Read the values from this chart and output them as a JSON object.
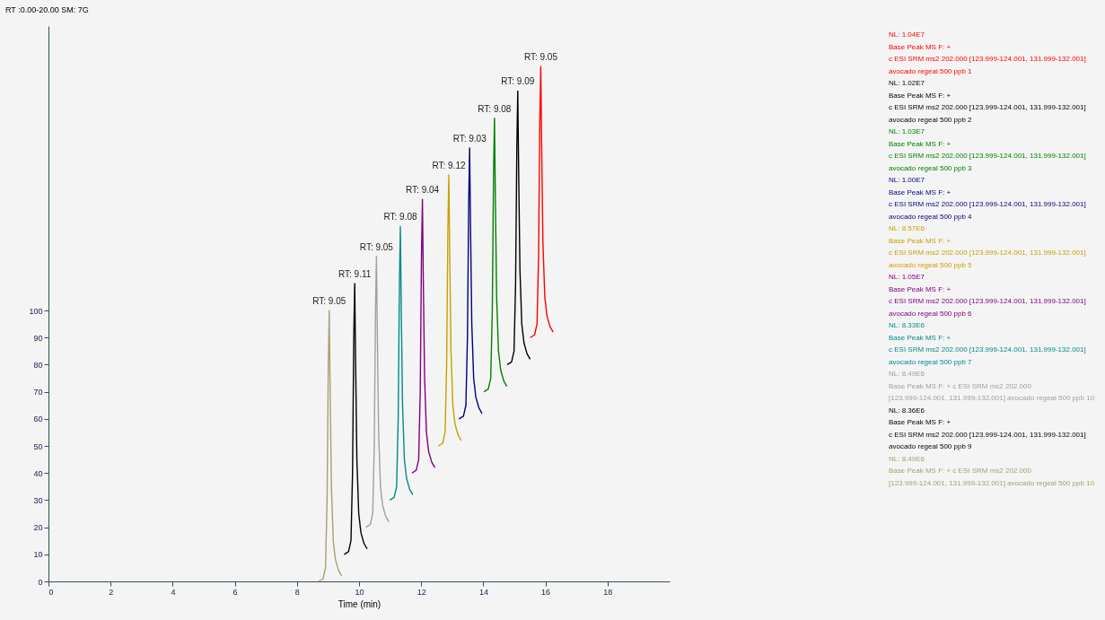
{
  "chart_data": {
    "type": "line",
    "xlabel": "Time (min)",
    "xlim": [
      0,
      20
    ],
    "xticks": [
      0,
      2,
      4,
      6,
      8,
      10,
      12,
      14,
      16,
      18
    ],
    "ylim": [
      0,
      205
    ],
    "yticks": [
      0,
      10,
      20,
      30,
      40,
      50,
      60,
      70,
      80,
      90,
      100
    ],
    "grid": false,
    "legend": "right",
    "marker": "none",
    "line_style": "solid",
    "annotations": [
      "RT :0.00-20.00 SM: 7G",
      {
        "text": "RT: 9.05",
        "x": 9.04,
        "y": 100
      },
      {
        "text": "RT: 9.11",
        "x": 9.86,
        "y": 110
      },
      {
        "text": "RT: 9.05",
        "x": 10.56,
        "y": 120
      },
      {
        "text": "RT: 9.08",
        "x": 11.33,
        "y": 131
      },
      {
        "text": "RT: 9.04",
        "x": 12.04,
        "y": 141
      },
      {
        "text": "RT: 9.12",
        "x": 12.89,
        "y": 150
      },
      {
        "text": "RT: 9.03",
        "x": 13.56,
        "y": 160
      },
      {
        "text": "RT: 9.08",
        "x": 14.36,
        "y": 171
      },
      {
        "text": "RT: 9.09",
        "x": 15.11,
        "y": 181
      },
      {
        "text": "RT: 9.05",
        "x": 15.85,
        "y": 190
      }
    ],
    "series": [
      {
        "name": "NL: 8.49E6\nBase Peak MS F: + c ESI SRM ms2 202.000\n[123.999-124.001, 131.999-132.001] avocado regeal 500 ppb 10",
        "color": "#a8a070",
        "x": [
          8.7,
          8.84,
          8.92,
          8.97,
          9.01,
          9.04,
          9.07,
          9.11,
          9.17,
          9.24,
          9.34,
          9.44
        ],
        "values": [
          0,
          1,
          5,
          30,
          80,
          100,
          70,
          35,
          15,
          8,
          4,
          2
        ]
      },
      {
        "name": "NL: 8.36E6\nBase Peak MS F: +\nc ESI SRM ms2 202.000 [123.999-124.001, 131.999-132.001] avocado regeal 500 ppb 9",
        "color": "#000000",
        "x": [
          9.52,
          9.66,
          9.74,
          9.79,
          9.83,
          9.86,
          9.89,
          9.93,
          9.99,
          10.06,
          10.16,
          10.26
        ],
        "values": [
          10,
          11,
          15,
          40,
          90,
          110,
          80,
          45,
          25,
          18,
          14,
          12
        ]
      },
      {
        "name": "NL: 8.49E6\nBase Peak MS F: + c ESI SRM ms2 202.000\n[123.999-124.001, 131.999-132.001] avocado regeal 500 ppb 10",
        "color": "#a0a0a0",
        "x": [
          10.22,
          10.36,
          10.44,
          10.49,
          10.53,
          10.56,
          10.59,
          10.63,
          10.69,
          10.76,
          10.86,
          10.96
        ],
        "values": [
          20,
          21,
          25,
          50,
          100,
          120,
          90,
          55,
          35,
          28,
          24,
          22
        ]
      },
      {
        "name": "NL: 8.33E6\nBase Peak MS F: +\nc ESI SRM ms2 202.000 [123.999-124.001, 131.999-132.001] avocado regeal 500 ppb 7",
        "color": "#008b8b",
        "x": [
          10.99,
          11.13,
          11.21,
          11.26,
          11.3,
          11.33,
          11.36,
          11.4,
          11.46,
          11.53,
          11.63,
          11.73
        ],
        "values": [
          30,
          31,
          35,
          60,
          110,
          131,
          100,
          65,
          45,
          38,
          34,
          32
        ]
      },
      {
        "name": "NL: 1.05E7\nBase Peak MS F: +\nc ESI SRM ms2 202.000 [123.999-124.001, 131.999-132.001] avocado regeal 500 ppb 6",
        "color": "#800080",
        "x": [
          11.7,
          11.84,
          11.92,
          11.97,
          12.01,
          12.04,
          12.07,
          12.11,
          12.17,
          12.24,
          12.34,
          12.44
        ],
        "values": [
          40,
          41,
          45,
          70,
          120,
          141,
          110,
          75,
          55,
          48,
          44,
          42
        ]
      },
      {
        "name": "NL: 8.57E6\nBase Peak MS F: +\nc ESI SRM ms2 202.000 [123.999-124.001, 131.999-132.001] avocado regeal 500 ppb 5",
        "color": "#c8a000",
        "x": [
          12.55,
          12.69,
          12.77,
          12.82,
          12.86,
          12.89,
          12.92,
          12.96,
          13.02,
          13.09,
          13.19,
          13.29
        ],
        "values": [
          50,
          51,
          55,
          80,
          130,
          150,
          120,
          85,
          65,
          58,
          54,
          52
        ]
      },
      {
        "name": "NL: 1.00E7\nBase Peak MS F: +\nc ESI SRM ms2 202.000 [123.999-124.001, 131.999-132.001] avocado regeal 500 ppb 4",
        "color": "#000080",
        "x": [
          13.22,
          13.36,
          13.44,
          13.49,
          13.53,
          13.56,
          13.59,
          13.63,
          13.69,
          13.76,
          13.86,
          13.96
        ],
        "values": [
          60,
          61,
          65,
          90,
          140,
          160,
          130,
          95,
          75,
          68,
          64,
          62
        ]
      },
      {
        "name": "NL: 1.03E7\nBase Peak MS F: +\nc ESI SRM ms2 202.000 [123.999-124.001, 131.999-132.001] avocado regeal 500 ppb 3",
        "color": "#008000",
        "x": [
          14.02,
          14.16,
          14.24,
          14.29,
          14.33,
          14.36,
          14.39,
          14.43,
          14.49,
          14.56,
          14.66,
          14.76
        ],
        "values": [
          70,
          71,
          75,
          100,
          150,
          171,
          140,
          105,
          85,
          78,
          74,
          72
        ]
      },
      {
        "name": "NL: 1.02E7\nBase Peak MS F: +\nc ESI SRM ms2 202.000 [123.999-124.001, 131.999-132.001] avocado regeal 500 ppb 2",
        "color": "#000000",
        "x": [
          14.77,
          14.91,
          14.99,
          15.04,
          15.08,
          15.11,
          15.14,
          15.18,
          15.24,
          15.31,
          15.41,
          15.51
        ],
        "values": [
          80,
          81,
          85,
          110,
          160,
          181,
          150,
          115,
          95,
          88,
          84,
          82
        ]
      },
      {
        "name": "NL: 1.04E7\nBase Peak MS F: +\nc ESI SRM ms2 202.000 [123.999-124.001, 131.999-132.001] avocado regeal 500 ppb 1",
        "color": "#ff0000",
        "x": [
          15.51,
          15.65,
          15.73,
          15.78,
          15.82,
          15.85,
          15.88,
          15.92,
          15.98,
          16.05,
          16.15,
          16.25
        ],
        "values": [
          90,
          91,
          95,
          120,
          170,
          190,
          160,
          125,
          105,
          98,
          94,
          92
        ]
      }
    ]
  }
}
